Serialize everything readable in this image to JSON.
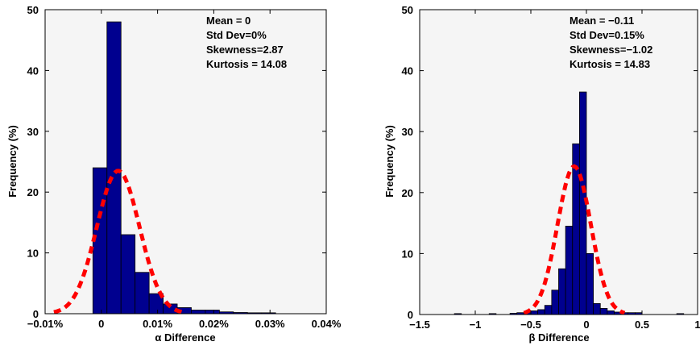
{
  "chart_data": [
    {
      "type": "bar",
      "xlabel": "α Difference",
      "ylabel": "Frequency (%)",
      "xlim": [
        -0.01,
        0.04
      ],
      "ylim": [
        0,
        50
      ],
      "xticks": [
        -0.01,
        0,
        0.01,
        0.02,
        0.03,
        0.04
      ],
      "xtick_labels": [
        "−0.01%",
        "0",
        "0.01%",
        "0.02%",
        "0.03%",
        "0.04%"
      ],
      "yticks": [
        0,
        10,
        20,
        30,
        40,
        50
      ],
      "ytick_labels": [
        "0",
        "10",
        "20",
        "30",
        "40",
        "50"
      ],
      "bin_width": 0.0025,
      "bar_color": "#00008f",
      "bars": [
        {
          "x0": -0.0015,
          "value": 24
        },
        {
          "x0": 0.001,
          "value": 48
        },
        {
          "x0": 0.0035,
          "value": 13
        },
        {
          "x0": 0.006,
          "value": 6.8
        },
        {
          "x0": 0.0085,
          "value": 3.3
        },
        {
          "x0": 0.011,
          "value": 1.6
        },
        {
          "x0": 0.0135,
          "value": 1.0
        },
        {
          "x0": 0.016,
          "value": 0.6
        },
        {
          "x0": 0.0185,
          "value": 0.6
        },
        {
          "x0": 0.021,
          "value": 0.3
        },
        {
          "x0": 0.0235,
          "value": 0.2
        },
        {
          "x0": 0.026,
          "value": 0.15
        },
        {
          "x0": 0.0285,
          "value": 0.15
        }
      ],
      "fit_curve": {
        "style": "dashed",
        "color": "#ff0000",
        "mean": 0.003,
        "peak": 23.5,
        "sigma": 0.0038
      },
      "annotations": [
        "Mean = 0",
        "Std Dev=0%",
        "Skewness=2.87",
        "Kurtosis = 14.08"
      ]
    },
    {
      "type": "bar",
      "xlabel": "β Difference",
      "ylabel": "Frequency (%)",
      "xlim": [
        -1.5,
        1.0
      ],
      "ylim": [
        0,
        50
      ],
      "xticks": [
        -1.5,
        -1,
        -0.5,
        0,
        0.5,
        1
      ],
      "xtick_labels": [
        "−1.5",
        "−1",
        "−0.5",
        "0",
        "0.5",
        "1"
      ],
      "yticks": [
        0,
        10,
        20,
        30,
        40,
        50
      ],
      "ytick_labels": [
        "0",
        "10",
        "20",
        "30",
        "40",
        "50"
      ],
      "bin_width": 0.0625,
      "bar_color": "#00008f",
      "bars": [
        {
          "x0": -1.1875,
          "value": 0.15
        },
        {
          "x0": -0.875,
          "value": 0.15
        },
        {
          "x0": -0.6875,
          "value": 0.2
        },
        {
          "x0": -0.625,
          "value": 0.3
        },
        {
          "x0": -0.5625,
          "value": 0.3
        },
        {
          "x0": -0.5,
          "value": 0.6
        },
        {
          "x0": -0.4375,
          "value": 0.8
        },
        {
          "x0": -0.375,
          "value": 1.5
        },
        {
          "x0": -0.3125,
          "value": 4.0
        },
        {
          "x0": -0.25,
          "value": 7.5
        },
        {
          "x0": -0.1875,
          "value": 14.5
        },
        {
          "x0": -0.125,
          "value": 28
        },
        {
          "x0": -0.0625,
          "value": 36.5
        },
        {
          "x0": 0.0,
          "value": 10
        },
        {
          "x0": 0.0625,
          "value": 1.8
        },
        {
          "x0": 0.125,
          "value": 1.0
        },
        {
          "x0": 0.1875,
          "value": 0.6
        },
        {
          "x0": 0.25,
          "value": 0.4
        },
        {
          "x0": 0.3125,
          "value": 0.3
        },
        {
          "x0": 0.375,
          "value": 0.3
        },
        {
          "x0": 0.4375,
          "value": 0.3
        },
        {
          "x0": 0.8125,
          "value": 0.15
        }
      ],
      "fit_curve": {
        "style": "dashed",
        "color": "#ff0000",
        "mean": -0.11,
        "peak": 24.3,
        "sigma": 0.15
      },
      "annotations": [
        "Mean = −0.11",
        "Std Dev=0.15%",
        "Skewness=−1.02",
        "Kurtosis = 14.83"
      ]
    }
  ]
}
